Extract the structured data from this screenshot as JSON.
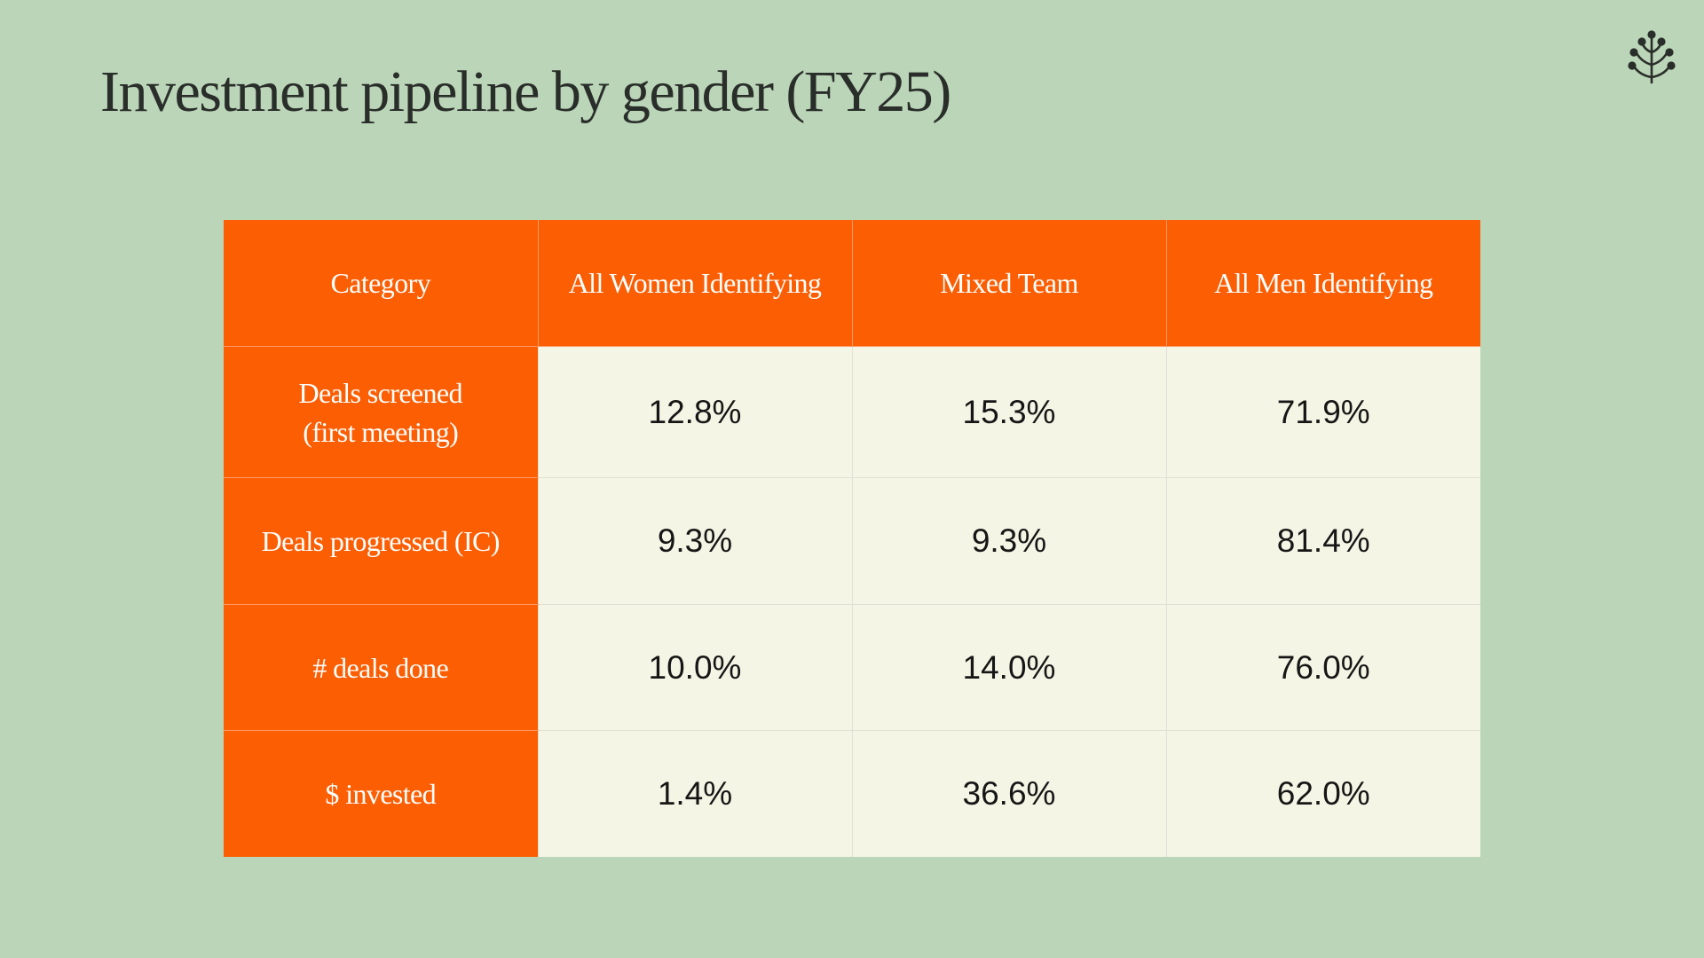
{
  "page": {
    "title": "Investment pipeline by gender (FY25)"
  },
  "logo": {
    "icon": "sprout-icon",
    "color": "#2a2e2a"
  },
  "table": {
    "header_color": "#fb5e03",
    "cell_color": "#f5f5e5",
    "columns": [
      "Category",
      "All Women Identifying",
      "Mixed Team",
      "All Men Identifying"
    ],
    "rows": [
      {
        "label_line1": "Deals screened",
        "label_line2": "(first meeting)",
        "values": [
          "12.8%",
          "15.3%",
          "71.9%"
        ]
      },
      {
        "label_line1": "Deals progressed (IC)",
        "values": [
          "9.3%",
          "9.3%",
          "81.4%"
        ]
      },
      {
        "label_line1": "# deals done",
        "values": [
          "10.0%",
          "14.0%",
          "76.0%"
        ]
      },
      {
        "label_line1": "$ invested",
        "values": [
          "1.4%",
          "36.6%",
          "62.0%"
        ]
      }
    ]
  }
}
